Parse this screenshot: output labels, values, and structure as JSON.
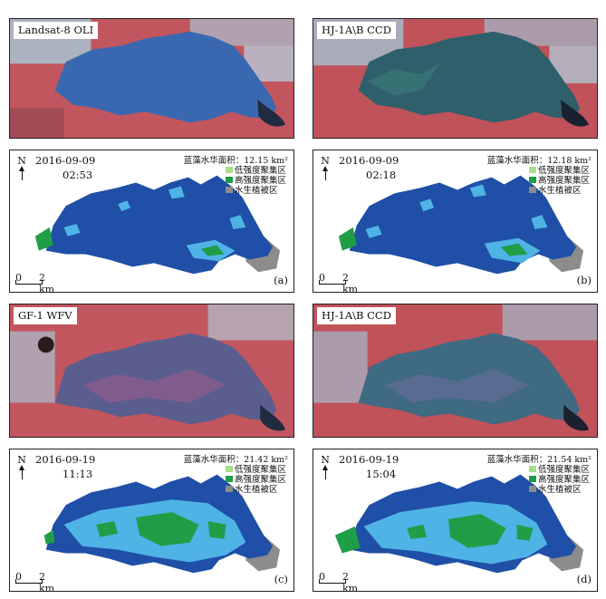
{
  "colors": {
    "lake_blue_true": "#3a68b0",
    "land_red": "#c2565e",
    "urban": "#a9c2d2",
    "lake_map": "#1f4fa6",
    "low_intensity": "#a8dd8a",
    "high_intensity": "#1f9e47",
    "vegetation": "#8c8c8c",
    "light_bloom": "#4fb3e6"
  },
  "icons": {
    "north": "north-arrow-icon"
  },
  "panels": {
    "sat_a": {
      "sensor": "Landsat-8 OLI"
    },
    "sat_b": {
      "sensor": "HJ-1A\\B CCD"
    },
    "sat_c": {
      "sensor": "GF-1 WFV"
    },
    "sat_d": {
      "sensor": "HJ-1A\\B CCD"
    },
    "map_a": {
      "date": "2016-09-09",
      "time": "02:53",
      "area": "蓝藻水华面积：12.15 km²",
      "letter": "(a)"
    },
    "map_b": {
      "date": "2016-09-09",
      "time": "02:18",
      "area": "蓝藻水华面积：12.18 km²",
      "letter": "(b)"
    },
    "map_c": {
      "date": "2016-09-19",
      "time": "11:13",
      "area": "蓝藻水华面积：21.42 km²",
      "letter": "(c)"
    },
    "map_d": {
      "date": "2016-09-19",
      "time": "15:04",
      "area": "蓝藻水华面积：21.54 km²",
      "letter": "(d)"
    }
  },
  "legend": {
    "low": "低强度聚集区",
    "high": "高强度聚集区",
    "veg": "水生植被区"
  },
  "north_label": "N",
  "scale": {
    "zero": "0",
    "km": "2 km"
  }
}
